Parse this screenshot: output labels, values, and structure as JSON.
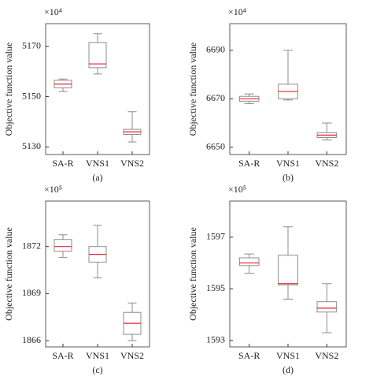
{
  "chart_data": [
    {
      "type": "box",
      "caption": "(a)",
      "y_label": "Objective function value",
      "multiplier": "×10⁴",
      "categories": [
        "SA-R",
        "VNS1",
        "VNS2"
      ],
      "boxes": [
        {
          "min": 5152,
          "q1": 5153.5,
          "median": 5155,
          "q3": 5156.5,
          "max": 5157
        },
        {
          "min": 5159,
          "q1": 5161.5,
          "median": 5163,
          "q3": 5171.5,
          "max": 5175
        },
        {
          "min": 5132,
          "q1": 5135,
          "median": 5136,
          "q3": 5137,
          "max": 5144
        }
      ],
      "ylim": [
        5127,
        5179
      ],
      "yticks": [
        5130,
        5150,
        5170
      ],
      "box_color": "#8c8c8c",
      "median_color": "#e8242a"
    },
    {
      "type": "box",
      "caption": "(b)",
      "y_label": "Objective function value",
      "multiplier": "×10⁴",
      "categories": [
        "SA-R",
        "VNS1",
        "VNS2"
      ],
      "boxes": [
        {
          "min": 6668,
          "q1": 6669,
          "median": 6670,
          "q3": 6671,
          "max": 6672
        },
        {
          "min": 6669.5,
          "q1": 6670,
          "median": 6673,
          "q3": 6676,
          "max": 6690
        },
        {
          "min": 6653,
          "q1": 6654,
          "median": 6655,
          "q3": 6656,
          "max": 6660
        }
      ],
      "ylim": [
        6647,
        6701
      ],
      "yticks": [
        6650,
        6670,
        6690
      ],
      "box_color": "#8c8c8c",
      "median_color": "#e8242a"
    },
    {
      "type": "box",
      "caption": "(c)",
      "y_label": "Objective function value",
      "multiplier": "×10⁵",
      "categories": [
        "SA-R",
        "VNS1",
        "VNS2"
      ],
      "boxes": [
        {
          "min": 1871.3,
          "q1": 1871.7,
          "median": 1872,
          "q3": 1872.45,
          "max": 1872.75
        },
        {
          "min": 1870,
          "q1": 1871,
          "median": 1871.5,
          "q3": 1872,
          "max": 1873.35
        },
        {
          "min": 1866,
          "q1": 1866.4,
          "median": 1867.1,
          "q3": 1867.8,
          "max": 1868.4
        }
      ],
      "ylim": [
        1865.6,
        1874.9
      ],
      "yticks": [
        1866,
        1869,
        1872
      ],
      "box_color": "#8c8c8c",
      "median_color": "#e8242a"
    },
    {
      "type": "box",
      "caption": "(d)",
      "y_label": "Objective function value",
      "multiplier": "×10⁵",
      "categories": [
        "SA-R",
        "VNS1",
        "VNS2"
      ],
      "boxes": [
        {
          "min": 1595.6,
          "q1": 1595.9,
          "median": 1596,
          "q3": 1596.2,
          "max": 1596.35
        },
        {
          "min": 1594.6,
          "q1": 1595.15,
          "median": 1595.2,
          "q3": 1596.3,
          "max": 1597.4
        },
        {
          "min": 1593.3,
          "q1": 1594.1,
          "median": 1594.25,
          "q3": 1594.5,
          "max": 1595.2
        }
      ],
      "ylim": [
        1592.75,
        1598.4
      ],
      "yticks": [
        1593,
        1595,
        1597
      ],
      "box_color": "#8c8c8c",
      "median_color": "#e8242a"
    }
  ]
}
